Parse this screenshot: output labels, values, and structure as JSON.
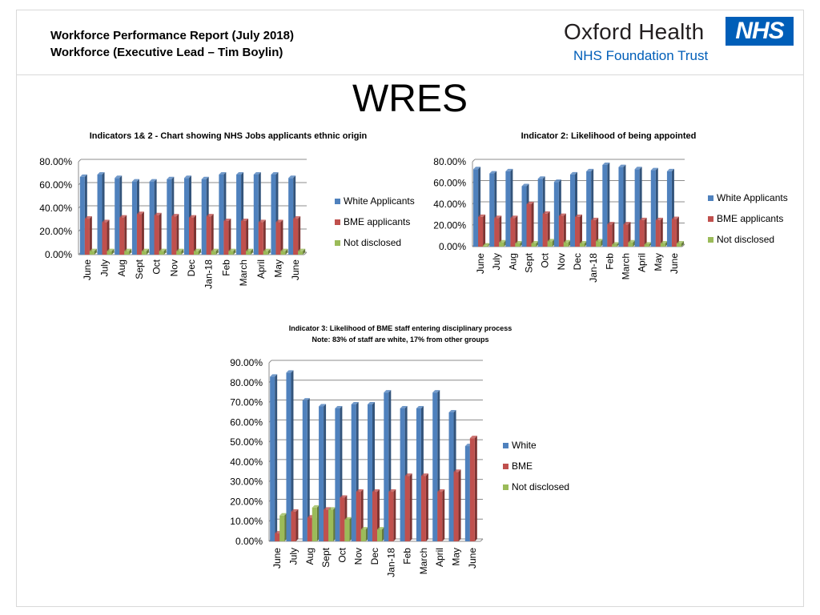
{
  "header": {
    "report_title": "Workforce Performance Report (July 2018)",
    "report_subtitle": "Workforce (Executive Lead – Tim Boylin)",
    "logo": {
      "org_name": "Oxford Health",
      "trust_name": "NHS Foundation Trust",
      "badge": "NHS",
      "badge_color": "#005eb8"
    }
  },
  "main_title": "WRES",
  "colors": {
    "white": "#4f81bd",
    "bme": "#c0504d",
    "not_disclosed": "#9bbb59"
  },
  "chart_data": [
    {
      "id": "chart1",
      "type": "bar",
      "title": "Indicators 1& 2 - Chart showing NHS Jobs applicants ethnic origin",
      "subtitle": "",
      "categories": [
        "June",
        "July",
        "Aug",
        "Sept",
        "Oct",
        "Nov",
        "Dec",
        "Jan-18",
        "Feb",
        "March",
        "April",
        "May",
        "June"
      ],
      "yticks": [
        "0.00%",
        "20.00%",
        "40.00%",
        "60.00%",
        "80.00%"
      ],
      "ylim": [
        0,
        80
      ],
      "grid": true,
      "legend": "right",
      "series": [
        {
          "name": "White Applicants",
          "values": [
            67,
            69,
            66,
            63,
            63,
            65,
            66,
            65,
            69,
            69,
            69,
            69,
            66
          ]
        },
        {
          "name": "BME applicants",
          "values": [
            31,
            28,
            32,
            35,
            34,
            33,
            32,
            33,
            29,
            29,
            28,
            28,
            31
          ]
        },
        {
          "name": "Not disclosed",
          "values": [
            3,
            3,
            3,
            3,
            3,
            3,
            3,
            3,
            3,
            3,
            3,
            3,
            3
          ]
        }
      ]
    },
    {
      "id": "chart2",
      "type": "bar",
      "title": "Indicator 2: Likelihood of being appointed",
      "subtitle": "",
      "categories": [
        "June",
        "July",
        "Aug",
        "Sept",
        "Oct",
        "Nov",
        "Dec",
        "Jan-18",
        "Feb",
        "March",
        "April",
        "May",
        "June"
      ],
      "yticks": [
        "0.00%",
        "20.00%",
        "40.00%",
        "60.00%",
        "80.00%"
      ],
      "ylim": [
        0,
        80
      ],
      "grid": true,
      "legend": "right",
      "series": [
        {
          "name": "White Applicants",
          "values": [
            73,
            69,
            71,
            57,
            64,
            61,
            68,
            71,
            77,
            75,
            73,
            72,
            71
          ]
        },
        {
          "name": "BME applicants",
          "values": [
            28,
            27,
            27,
            40,
            31,
            29,
            28,
            25,
            21,
            21,
            25,
            25,
            26
          ]
        },
        {
          "name": "Not disclosed",
          "values": [
            1,
            4,
            3,
            3,
            5,
            4,
            3,
            5,
            2,
            4,
            2,
            3,
            3
          ]
        }
      ]
    },
    {
      "id": "chart3",
      "type": "bar",
      "title": "Indicator 3: Likelihood of BME staff entering disciplinary process",
      "subtitle": "Note: 83% of staff are white, 17% from other groups",
      "categories": [
        "June",
        "July",
        "Aug",
        "Sept",
        "Oct",
        "Nov",
        "Dec",
        "Jan-18",
        "Feb",
        "March",
        "April",
        "May",
        "June"
      ],
      "yticks": [
        "0.00%",
        "10.00%",
        "20.00%",
        "30.00%",
        "40.00%",
        "50.00%",
        "60.00%",
        "70.00%",
        "80.00%",
        "90.00%"
      ],
      "ylim": [
        0,
        90
      ],
      "grid": true,
      "legend": "right",
      "series": [
        {
          "name": "White",
          "values": [
            83,
            85,
            71,
            68,
            67,
            69,
            69,
            75,
            67,
            67,
            75,
            65,
            48
          ]
        },
        {
          "name": "BME",
          "values": [
            4,
            15,
            12,
            16,
            22,
            25,
            25,
            25,
            33,
            33,
            25,
            35,
            52
          ]
        },
        {
          "name": "Not disclosed",
          "values": [
            13,
            0,
            17,
            16,
            11,
            6,
            6,
            0,
            0,
            0,
            0,
            0,
            0
          ]
        }
      ]
    }
  ]
}
